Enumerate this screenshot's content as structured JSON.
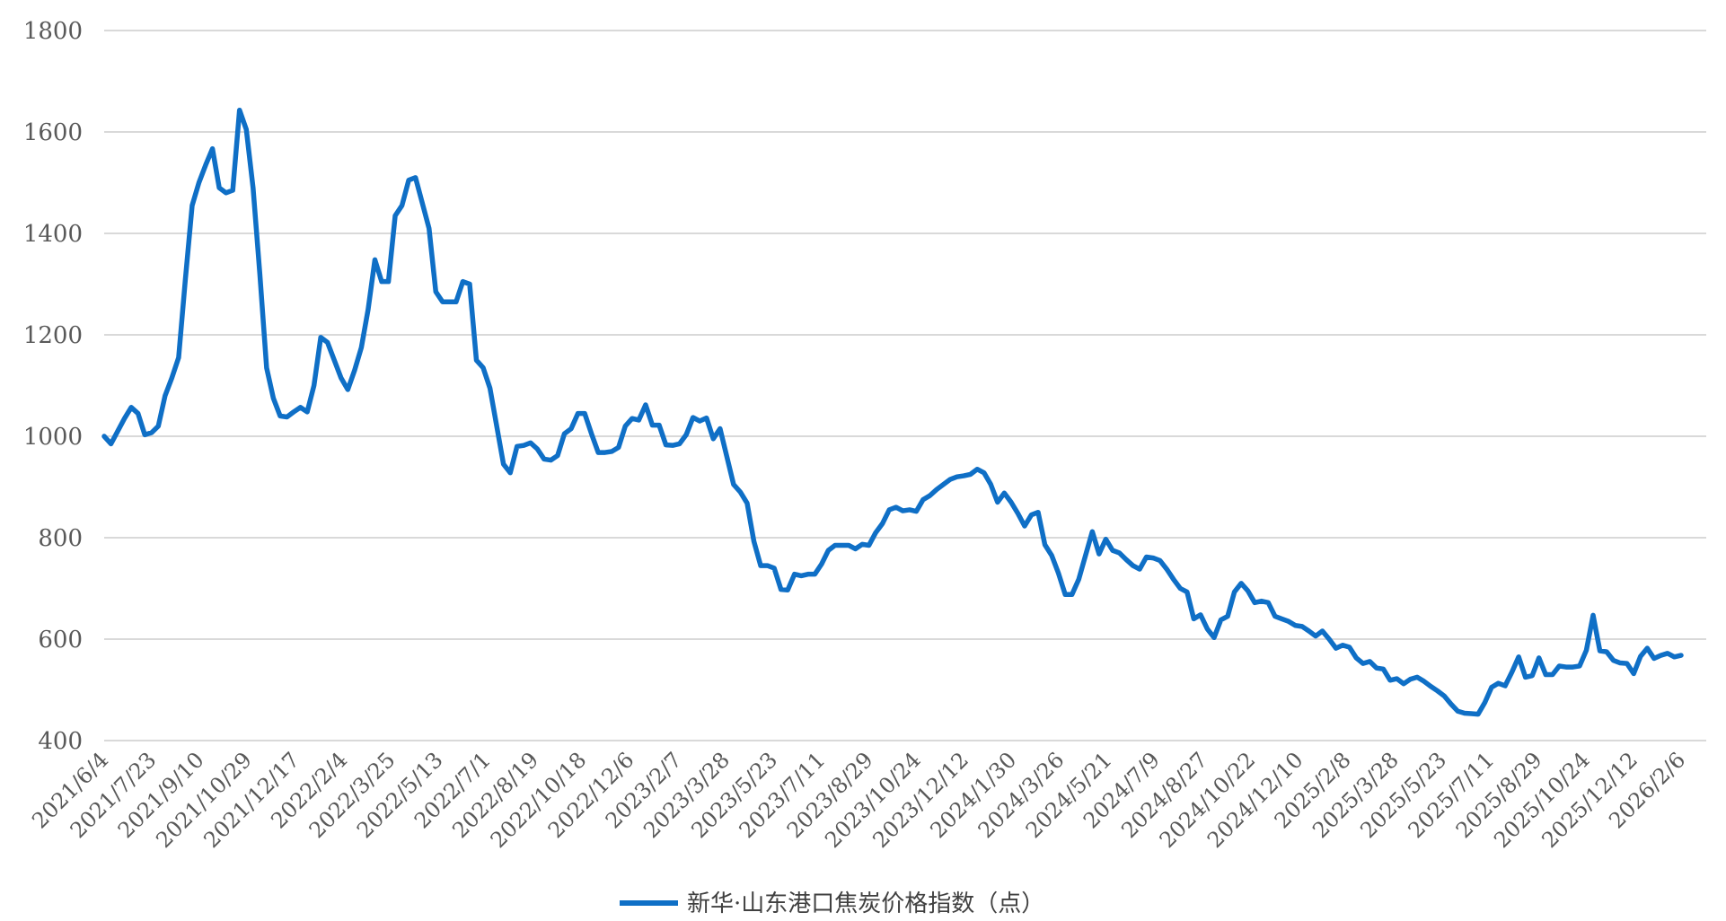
{
  "chart_data": {
    "type": "line",
    "title": "",
    "xlabel": "",
    "ylabel": "",
    "ylim": [
      400,
      1800
    ],
    "yticks": [
      400,
      600,
      800,
      1000,
      1200,
      1400,
      1600,
      1800
    ],
    "grid": "horizontal",
    "legend_position": "bottom-center",
    "line_color": "#0F6FC6",
    "xtick_labels": [
      "2021/6/4",
      "2021/7/23",
      "2021/9/10",
      "2021/10/29",
      "2021/12/17",
      "2022/2/4",
      "2022/3/25",
      "2022/5/13",
      "2022/7/1",
      "2022/8/19",
      "2022/10/18",
      "2022/12/6",
      "2023/2/7",
      "2023/3/28",
      "2023/5/23",
      "2023/7/11",
      "2023/8/29",
      "2023/10/24",
      "2023/12/12",
      "2024/1/30",
      "2024/3/26",
      "2024/5/21",
      "2024/7/9",
      "2024/8/27",
      "2024/10/22",
      "2024/12/10",
      "2025/2/8",
      "2025/3/28",
      "2025/5/23",
      "2025/7/11",
      "2025/8/29",
      "2025/10/24",
      "2025/12/12",
      "2026/2/6"
    ],
    "series": [
      {
        "name": "新华·山东港口焦炭价格指数（点）",
        "values": [
          1000,
          985,
          1010,
          1035,
          1057,
          1045,
          1003,
          1007,
          1020,
          1080,
          1115,
          1155,
          1310,
          1455,
          1500,
          1535,
          1567,
          1490,
          1480,
          1485,
          1643,
          1605,
          1490,
          1320,
          1135,
          1075,
          1040,
          1038,
          1048,
          1057,
          1048,
          1100,
          1195,
          1185,
          1150,
          1115,
          1092,
          1130,
          1175,
          1250,
          1348,
          1305,
          1305,
          1435,
          1455,
          1505,
          1510,
          1460,
          1410,
          1285,
          1265,
          1265,
          1265,
          1305,
          1300,
          1150,
          1135,
          1095,
          1020,
          945,
          928,
          980,
          982,
          987,
          975,
          955,
          953,
          962,
          1005,
          1015,
          1045,
          1045,
          1005,
          968,
          968,
          970,
          978,
          1020,
          1035,
          1032,
          1062,
          1022,
          1022,
          983,
          982,
          985,
          1003,
          1037,
          1030,
          1036,
          995,
          1015,
          960,
          905,
          890,
          868,
          793,
          745,
          745,
          740,
          698,
          697,
          728,
          725,
          728,
          728,
          748,
          775,
          785,
          785,
          785,
          778,
          787,
          785,
          810,
          828,
          855,
          860,
          853,
          855,
          852,
          875,
          883,
          895,
          905,
          915,
          920,
          922,
          925,
          935,
          928,
          905,
          870,
          888,
          870,
          848,
          823,
          845,
          850,
          786,
          765,
          730,
          688,
          688,
          718,
          765,
          812,
          768,
          797,
          775,
          770,
          757,
          745,
          738,
          762,
          760,
          755,
          738,
          718,
          700,
          693,
          640,
          648,
          620,
          603,
          638,
          645,
          693,
          710,
          695,
          672,
          675,
          672,
          645,
          640,
          635,
          627,
          625,
          616,
          606,
          616,
          600,
          582,
          588,
          584,
          563,
          552,
          556,
          543,
          541,
          519,
          522,
          512,
          521,
          525,
          517,
          507,
          498,
          488,
          472,
          458,
          454,
          453,
          452,
          475,
          505,
          513,
          508,
          535,
          565,
          525,
          528,
          563,
          530,
          530,
          547,
          545,
          545,
          547,
          578,
          647,
          577,
          575,
          558,
          553,
          552,
          532,
          566,
          582,
          562,
          568,
          572,
          565,
          568
        ]
      }
    ]
  },
  "legend": {
    "label": "新华·山东港口焦炭价格指数（点）",
    "color": "#0F6FC6"
  }
}
